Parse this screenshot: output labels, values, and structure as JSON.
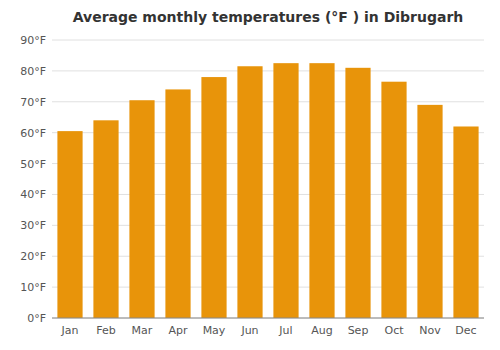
{
  "chart_data": {
    "type": "bar",
    "title": "Average monthly temperatures (°F ) in Dibrugarh",
    "categories": [
      "Jan",
      "Feb",
      "Mar",
      "Apr",
      "May",
      "Jun",
      "Jul",
      "Aug",
      "Sep",
      "Oct",
      "Nov",
      "Dec"
    ],
    "values": [
      60.5,
      64.0,
      70.5,
      74.0,
      78.0,
      81.5,
      82.5,
      82.5,
      81.0,
      76.5,
      69.0,
      62.0
    ],
    "color": "#E8940A",
    "ylim": [
      0,
      90
    ],
    "yticks": [
      {
        "value": 0,
        "label": "0°F"
      },
      {
        "value": 10,
        "label": "10°F"
      },
      {
        "value": 20,
        "label": "20°F"
      },
      {
        "value": 30,
        "label": "30°F"
      },
      {
        "value": 40,
        "label": "40°F"
      },
      {
        "value": 50,
        "label": "50°F"
      },
      {
        "value": 60,
        "label": "60°F"
      },
      {
        "value": 70,
        "label": "70°F"
      },
      {
        "value": 80,
        "label": "80°F"
      },
      {
        "value": 90,
        "label": "90°F"
      }
    ],
    "grid": true
  }
}
